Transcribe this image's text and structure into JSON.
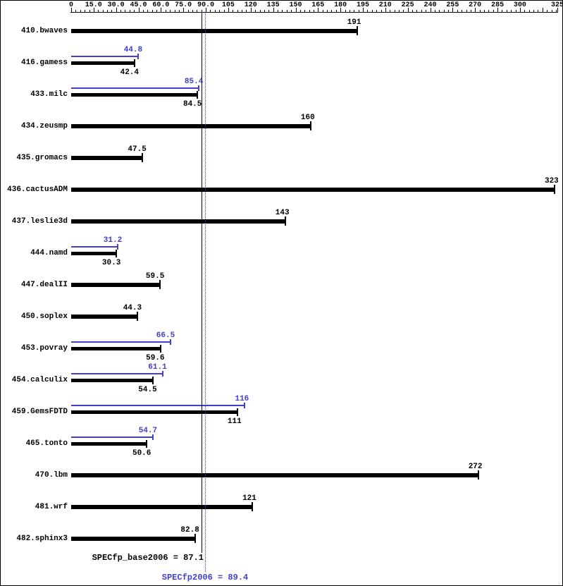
{
  "chart_data": {
    "type": "bar",
    "orientation": "horizontal",
    "axis": {
      "min": 0,
      "max": 325,
      "major_tick_interval": 15,
      "minor_tick_interval": 3,
      "tick_labels": [
        "0",
        "15.0",
        "30.0",
        "45.0",
        "60.0",
        "75.0",
        "90.0",
        "105",
        "120",
        "135",
        "150",
        "165",
        "180",
        "195",
        "210",
        "225",
        "240",
        "255",
        "270",
        "285",
        "300",
        "325"
      ]
    },
    "benchmarks": [
      {
        "name": "410.bwaves",
        "base": 191,
        "base_label": "191"
      },
      {
        "name": "416.gamess",
        "base": 42.4,
        "base_label": "42.4",
        "peak": 44.8,
        "peak_label": "44.8"
      },
      {
        "name": "433.milc",
        "base": 84.5,
        "base_label": "84.5",
        "peak": 85.4,
        "peak_label": "85.4"
      },
      {
        "name": "434.zeusmp",
        "base": 160,
        "base_label": "160"
      },
      {
        "name": "435.gromacs",
        "base": 47.5,
        "base_label": "47.5"
      },
      {
        "name": "436.cactusADM",
        "base": 323,
        "base_label": "323"
      },
      {
        "name": "437.leslie3d",
        "base": 143,
        "base_label": "143"
      },
      {
        "name": "444.namd",
        "base": 30.3,
        "base_label": "30.3",
        "peak": 31.2,
        "peak_label": "31.2"
      },
      {
        "name": "447.dealII",
        "base": 59.5,
        "base_label": "59.5"
      },
      {
        "name": "450.soplex",
        "base": 44.3,
        "base_label": "44.3"
      },
      {
        "name": "453.povray",
        "base": 59.6,
        "base_label": "59.6",
        "peak": 66.5,
        "peak_label": "66.5"
      },
      {
        "name": "454.calculix",
        "base": 54.5,
        "base_label": "54.5",
        "peak": 61.1,
        "peak_label": "61.1"
      },
      {
        "name": "459.GemsFDTD",
        "base": 111,
        "base_label": "111",
        "peak": 116,
        "peak_label": "116"
      },
      {
        "name": "465.tonto",
        "base": 50.6,
        "base_label": "50.6",
        "peak": 54.7,
        "peak_label": "54.7"
      },
      {
        "name": "470.lbm",
        "base": 272,
        "base_label": "272"
      },
      {
        "name": "481.wrf",
        "base": 121,
        "base_label": "121"
      },
      {
        "name": "482.sphinx3",
        "base": 82.8,
        "base_label": "82.8"
      }
    ],
    "means": {
      "base": 87.1,
      "peak": 89.4
    },
    "footer": {
      "base_text": "SPECfp_base2006 = 87.1",
      "peak_text": "SPECfp2006 = 89.4"
    },
    "colors": {
      "base": "#000000",
      "peak": "#4040cc"
    }
  }
}
